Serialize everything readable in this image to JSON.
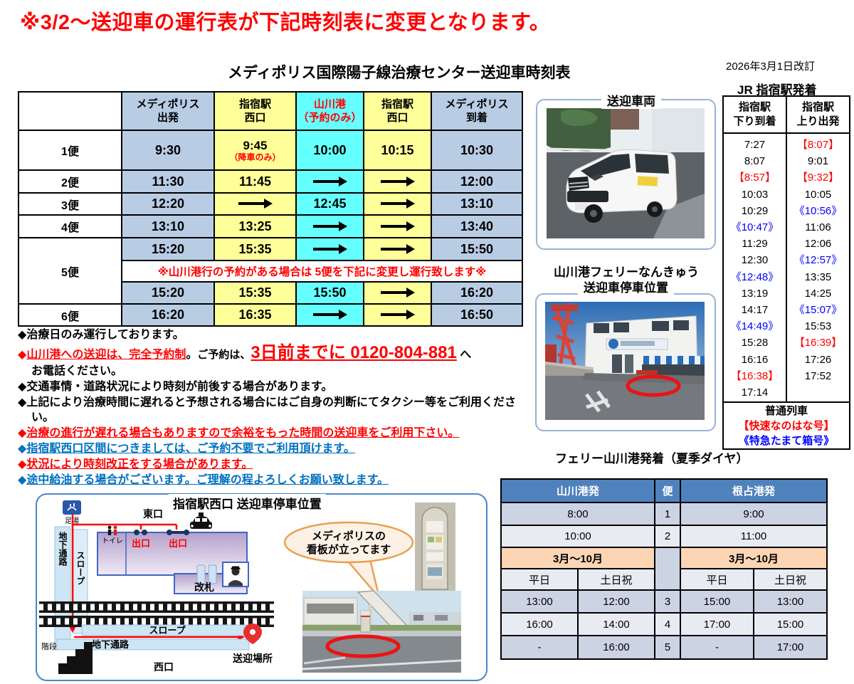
{
  "page": {
    "headline": "※3/2～送迎車の運行表が下記時刻表に変更となります。",
    "revision_date": "2026年3月1日改訂"
  },
  "colors": {
    "headline_red": "#ff0000",
    "cell_blue": "#b8cce4",
    "cell_yellow": "#ffff99",
    "cell_cyan": "#66ffff",
    "ferry_header_blue": "#4f81bd",
    "ferry_row_dark": "#ccd3e3",
    "ferry_row_light": "#e9ebf3",
    "ferry_orange": "#fcd5b4",
    "note_blue": "#0070c0",
    "jr_blue": "#0000ff"
  },
  "main_table": {
    "title": "メディポリス国際陽子線治療センター送迎車時刻表",
    "columns": [
      {
        "l1": "メディポリス",
        "l2": "出発",
        "bg": "blue"
      },
      {
        "l1": "指宿駅",
        "l2": "西口",
        "bg": "yellow"
      },
      {
        "l1": "山川港",
        "l2": "（予約のみ）",
        "bg": "cyan",
        "text": "red"
      },
      {
        "l1": "指宿駅",
        "l2": "西口",
        "bg": "yellow"
      },
      {
        "l1": "メディポリス",
        "l2": "到着",
        "bg": "blue"
      }
    ],
    "rows": [
      {
        "label": "1便",
        "cells": [
          {
            "t": "9:30"
          },
          {
            "t": "9:45",
            "sub": "（降車のみ）"
          },
          {
            "t": "10:00"
          },
          {
            "t": "10:15"
          },
          {
            "t": "10:30"
          }
        ]
      },
      {
        "label": "2便",
        "cells": [
          {
            "t": "11:30"
          },
          {
            "t": "11:45"
          },
          {
            "arrow": true
          },
          {
            "arrow": true
          },
          {
            "t": "12:00"
          }
        ]
      },
      {
        "label": "3便",
        "cells": [
          {
            "t": "12:20"
          },
          {
            "arrow": true
          },
          {
            "t": "12:45"
          },
          {
            "arrow": true
          },
          {
            "t": "13:10"
          }
        ]
      },
      {
        "label": "4便",
        "cells": [
          {
            "t": "13:10"
          },
          {
            "t": "13:25"
          },
          {
            "arrow": true
          },
          {
            "arrow": true
          },
          {
            "t": "13:40"
          }
        ]
      },
      {
        "label": "5便",
        "rowspan": 3,
        "cells": [
          {
            "t": "15:20"
          },
          {
            "t": "15:35"
          },
          {
            "arrow": true
          },
          {
            "arrow": true
          },
          {
            "t": "15:50"
          }
        ]
      },
      {
        "note": "※山川港行の予約がある場合は 5便を下記に変更し運行致します※"
      },
      {
        "cells": [
          {
            "t": "15:20"
          },
          {
            "t": "15:35"
          },
          {
            "t": "15:50"
          },
          {
            "arrow": true
          },
          {
            "t": "16:20"
          }
        ]
      },
      {
        "label": "6便",
        "cells": [
          {
            "t": "16:20"
          },
          {
            "t": "16:35"
          },
          {
            "arrow": true
          },
          {
            "arrow": true
          },
          {
            "t": "16:50"
          }
        ]
      }
    ]
  },
  "notes": [
    {
      "parts": [
        {
          "t": "治療日のみ運行しております。",
          "c": "k"
        }
      ]
    },
    {
      "parts": [
        {
          "t": "山川港への送迎は、完全予約制",
          "c": "r",
          "u": true
        },
        {
          "t": "。",
          "c": "k"
        },
        {
          "t": "ご予約は、",
          "c": "k",
          "small": true
        },
        {
          "t": "3日前までに 0120-804-881",
          "c": "r",
          "u": true,
          "big": true
        },
        {
          "t": " へ",
          "c": "k"
        }
      ]
    },
    {
      "cont": true,
      "parts": [
        {
          "t": "お電話ください。",
          "c": "k"
        }
      ]
    },
    {
      "parts": [
        {
          "t": "交通事情・道路状況により時刻が前後する場合があります。",
          "c": "k"
        }
      ]
    },
    {
      "parts": [
        {
          "t": "上記により治療時間に遅れると予想される場合にはご自身の判断にてタクシー等をご利用ください。",
          "c": "k"
        }
      ]
    },
    {
      "parts": [
        {
          "t": "治療の進行が遅れる場合もありますので余裕をもった時間の送迎車をご利用下さい。",
          "c": "r",
          "u": true
        }
      ]
    },
    {
      "parts": [
        {
          "t": "指宿駅西口区間につきましては、ご予約不要でご利用頂けます。",
          "c": "b",
          "u": true
        }
      ]
    },
    {
      "parts": [
        {
          "t": "状況により時刻改正をする場合があります。",
          "c": "r",
          "u": true
        }
      ]
    },
    {
      "parts": [
        {
          "t": "途中給油する場合がございます。ご理解の程よろしくお願い致します。",
          "c": "b",
          "u": true
        }
      ]
    }
  ],
  "photos": {
    "van_label": "送迎車両",
    "port_label_line1": "山川港フェリーなんきゅう",
    "port_label_line2": "送迎車停車位置"
  },
  "jr": {
    "title": "JR 指宿駅発着",
    "col_down": {
      "l1": "指宿駅",
      "l2": "下り到着"
    },
    "col_up": {
      "l1": "指宿駅",
      "l2": "上り出発"
    },
    "down": [
      {
        "t": "7:27",
        "c": "k"
      },
      {
        "t": "8:07",
        "c": "k"
      },
      {
        "t": "【8:57】",
        "c": "r"
      },
      {
        "t": "10:03",
        "c": "k"
      },
      {
        "t": "10:29",
        "c": "k"
      },
      {
        "t": "《10:47》",
        "c": "b"
      },
      {
        "t": "11:29",
        "c": "k"
      },
      {
        "t": "12:30",
        "c": "k"
      },
      {
        "t": "《12:48》",
        "c": "b"
      },
      {
        "t": "13:19",
        "c": "k"
      },
      {
        "t": "14:17",
        "c": "k"
      },
      {
        "t": "《14:49》",
        "c": "b"
      },
      {
        "t": "15:28",
        "c": "k"
      },
      {
        "t": "16:16",
        "c": "k"
      },
      {
        "t": "【16:38】",
        "c": "r"
      },
      {
        "t": "17:14",
        "c": "k"
      }
    ],
    "up": [
      {
        "t": "【8:07】",
        "c": "r"
      },
      {
        "t": "9:01",
        "c": "k"
      },
      {
        "t": "【9:32】",
        "c": "r"
      },
      {
        "t": "10:05",
        "c": "k"
      },
      {
        "t": "《10:56》",
        "c": "b"
      },
      {
        "t": "11:06",
        "c": "k"
      },
      {
        "t": "12:06",
        "c": "k"
      },
      {
        "t": "《12:57》",
        "c": "b"
      },
      {
        "t": "13:35",
        "c": "k"
      },
      {
        "t": "14:25",
        "c": "k"
      },
      {
        "t": "《15:07》",
        "c": "b"
      },
      {
        "t": "15:53",
        "c": "k"
      },
      {
        "t": "【16:39】",
        "c": "r"
      },
      {
        "t": "17:26",
        "c": "k"
      },
      {
        "t": "17:52",
        "c": "k"
      }
    ],
    "legend": [
      {
        "t": "普通列車",
        "c": "k"
      },
      {
        "t": "【快速なのはな号】",
        "c": "r"
      },
      {
        "t": "《特急たまて箱号》",
        "c": "b"
      }
    ]
  },
  "ferry": {
    "title": "フェリー山川港発着（夏季ダイヤ）",
    "header": {
      "left": "山川港発",
      "bin": "便",
      "right": "根占港発"
    },
    "rows": [
      {
        "bg": "dark",
        "cells": [
          {
            "t": "8:00",
            "span": 2
          },
          {
            "t": "1"
          },
          {
            "t": "9:00",
            "span": 2
          }
        ]
      },
      {
        "bg": "light",
        "cells": [
          {
            "t": "10:00",
            "span": 2
          },
          {
            "t": "2"
          },
          {
            "t": "11:00",
            "span": 2
          }
        ]
      },
      {
        "cells": [
          {
            "t": "3月～10月",
            "span": 2,
            "cls": "orange"
          },
          {
            "t": "",
            "rowspan": 2,
            "cls": "dark"
          },
          {
            "t": "3月～10月",
            "span": 2,
            "cls": "orange"
          }
        ]
      },
      {
        "bg": "light",
        "cells": [
          {
            "t": "平日"
          },
          {
            "t": "土日祝"
          },
          {
            "t": "平日"
          },
          {
            "t": "土日祝"
          }
        ]
      },
      {
        "bg": "dark",
        "cells": [
          {
            "t": "13:00"
          },
          {
            "t": "12:00"
          },
          {
            "t": "3"
          },
          {
            "t": "15:00"
          },
          {
            "t": "13:00"
          }
        ]
      },
      {
        "bg": "light",
        "cells": [
          {
            "t": "16:00"
          },
          {
            "t": "14:00"
          },
          {
            "t": "4"
          },
          {
            "t": "17:00"
          },
          {
            "t": "15:00"
          }
        ]
      },
      {
        "bg": "dark",
        "cells": [
          {
            "t": "-"
          },
          {
            "t": "16:00"
          },
          {
            "t": "5"
          },
          {
            "t": "-"
          },
          {
            "t": "17:00"
          }
        ]
      }
    ]
  },
  "map": {
    "title": "指宿駅西口  送迎車停車位置",
    "labels": {
      "ashiyu": "足湯",
      "higashi": "東口",
      "chika_v": "地下通路",
      "slope_v": "スロープ",
      "toilet": "トイレ",
      "exit1": "出口",
      "exit2": "出口",
      "kaisatsu": "改札",
      "slope_h": "スロープ",
      "chika_h": "地下通路",
      "kaidan": "階段",
      "nishi": "西口",
      "pin": "送迎場所"
    },
    "bubble": {
      "line1": "メディポリスの",
      "line2": "看板が立ってます"
    }
  }
}
